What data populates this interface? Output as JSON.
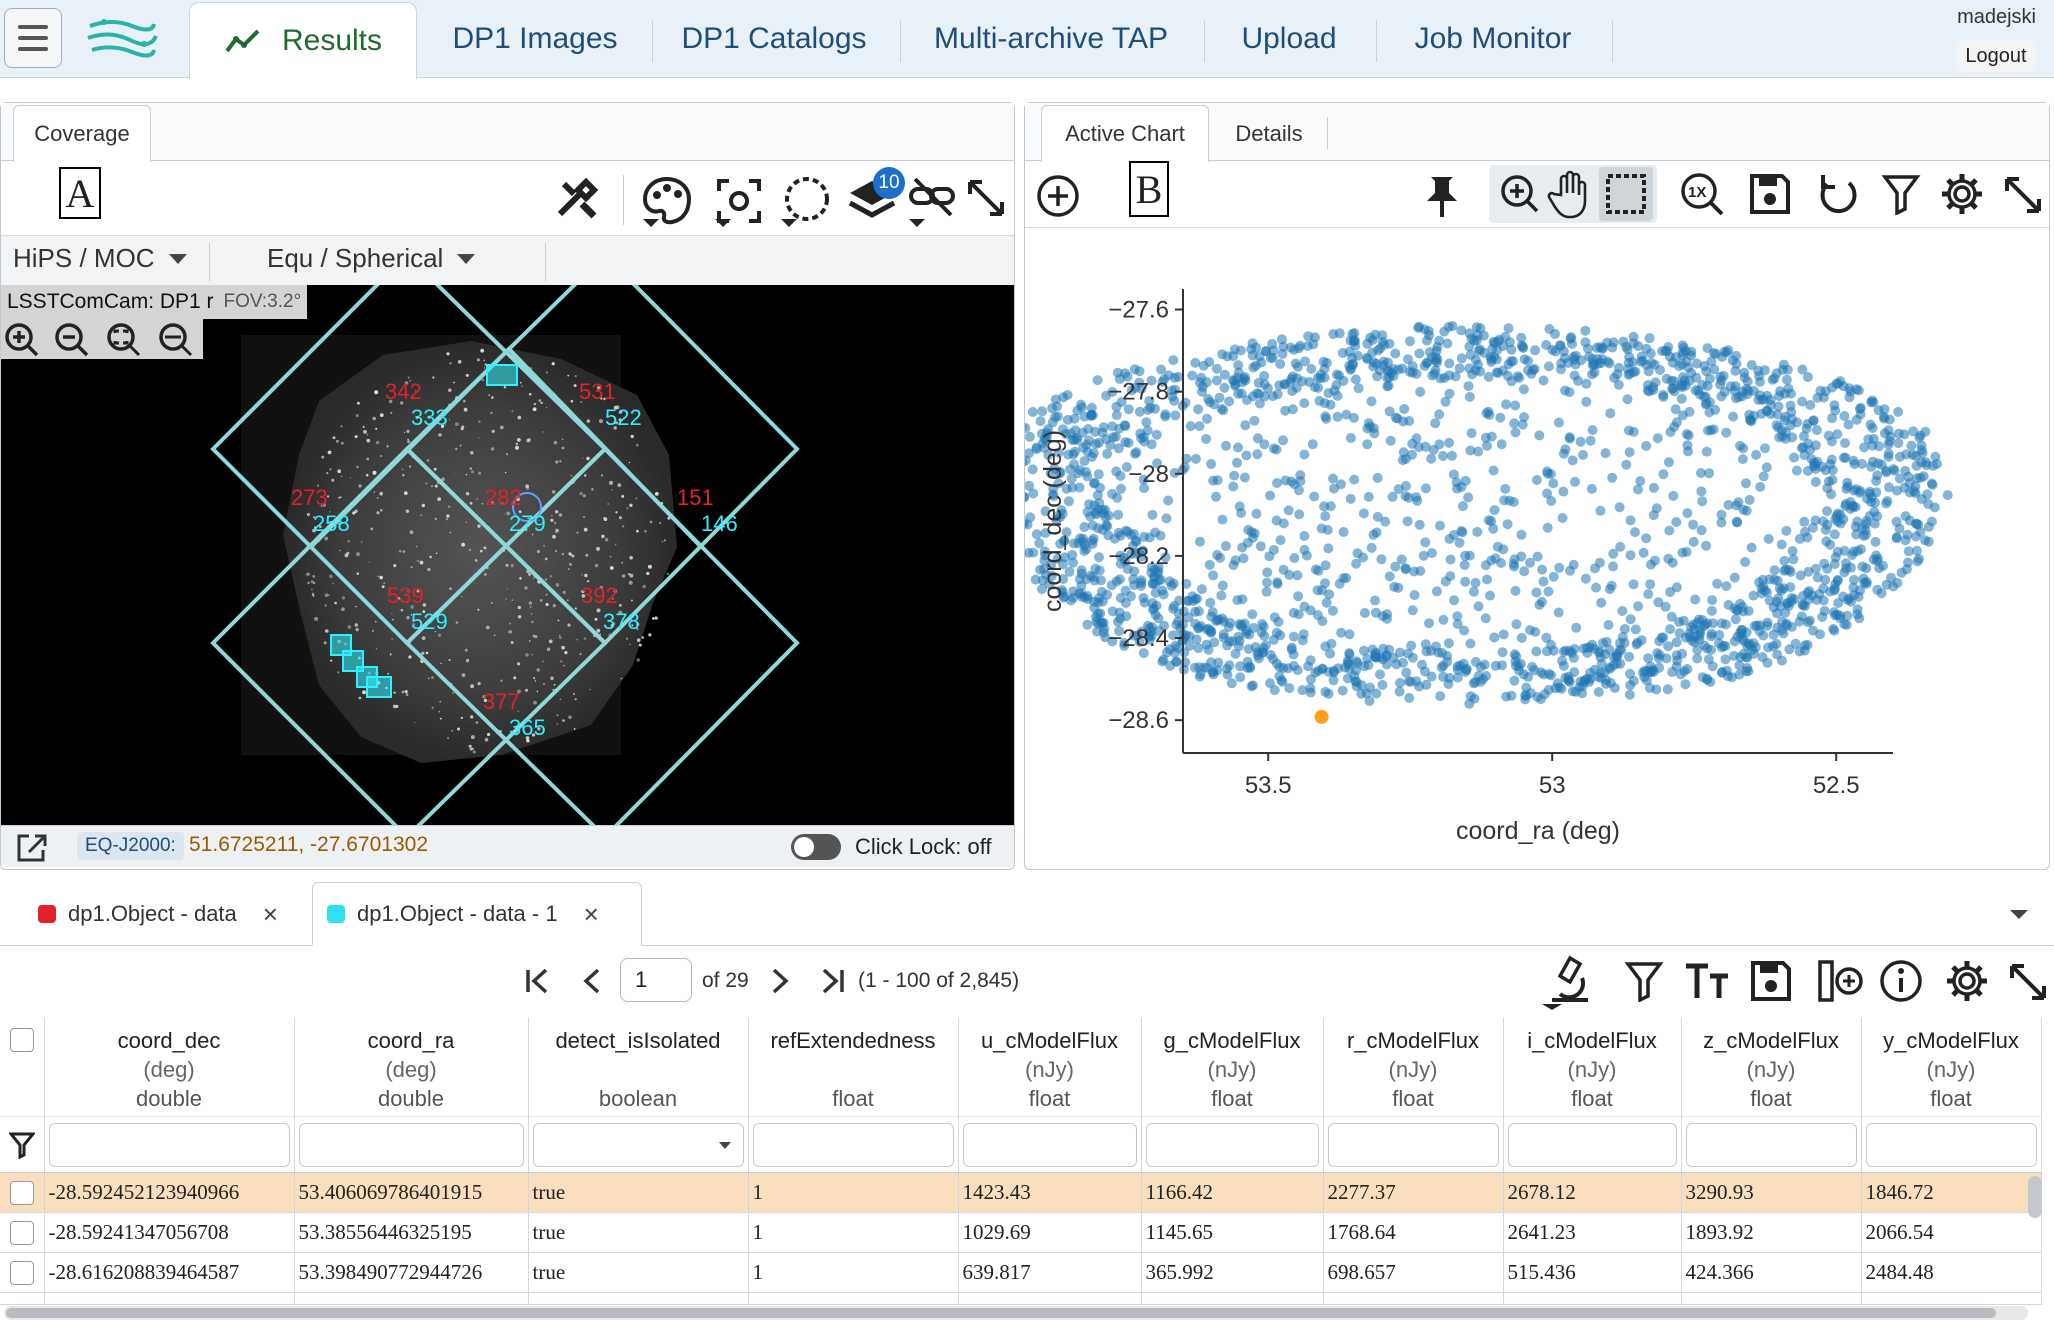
{
  "app": {
    "top_tabs": [
      "Results",
      "DP1 Images",
      "DP1 Catalogs",
      "Multi-archive TAP",
      "Upload",
      "Job Monitor"
    ],
    "user": "madejski",
    "logout_label": "Logout"
  },
  "coverage": {
    "tab_label": "Coverage",
    "marker": "A",
    "layers_badge": "10",
    "hips_moc_label": "HiPS / MOC",
    "projection_label": "Equ / Spherical",
    "image_title": "LSSTComCam: DP1 r",
    "fov": "FOV:3.2°",
    "tiles": [
      {
        "red": "342",
        "cyan": "333"
      },
      {
        "red": "531",
        "cyan": "522"
      },
      {
        "red": "273",
        "cyan": "258"
      },
      {
        "red": "282",
        "cyan": "279"
      },
      {
        "red": "151",
        "cyan": "146"
      },
      {
        "red": "539",
        "cyan": "529"
      },
      {
        "red": "392",
        "cyan": "378"
      },
      {
        "red": "377",
        "cyan": "365"
      }
    ],
    "coord_system": "EQ-J2000:",
    "coord_value": "51.6725211, -27.6701302",
    "click_lock": "Click Lock: off"
  },
  "chart_panel": {
    "tabs": [
      "Active Chart",
      "Details"
    ],
    "marker": "B"
  },
  "chart_data": {
    "type": "scatter",
    "title": "",
    "xlabel": "coord_ra (deg)",
    "ylabel": "coord_dec (deg)",
    "xlim": [
      53.65,
      52.4
    ],
    "ylim": [
      -28.68,
      -27.55
    ],
    "x_ticks": [
      53.5,
      53,
      52.5
    ],
    "x_tick_labels": [
      "53.5",
      "53",
      "52.5"
    ],
    "y_ticks": [
      -27.6,
      -27.8,
      -28,
      -28.2,
      -28.4,
      -28.6
    ],
    "y_tick_labels": [
      "−27.6",
      "−27.8",
      "−28",
      "−28.2",
      "−28.4",
      "−28.6"
    ],
    "series_color": "#1f77b4",
    "highlight_color": "#ff9f1c",
    "highlight_point": {
      "x": 53.406,
      "y": -28.592
    },
    "field": {
      "center_ra": 53.15,
      "center_dec": -28.1,
      "radius_ra": 0.84,
      "radius_dec": 0.49,
      "n_points": 2200
    }
  },
  "tables": {
    "tabs": [
      {
        "label": "dp1.Object - data",
        "color": "#e5202b"
      },
      {
        "label": "dp1.Object - data - 1",
        "color": "#30e0f0"
      }
    ],
    "pager": {
      "page": "1",
      "of": "of 29",
      "range": "(1 - 100 of 2,845)"
    },
    "columns": [
      {
        "name": "coord_dec",
        "unit": "(deg)",
        "type": "double"
      },
      {
        "name": "coord_ra",
        "unit": "(deg)",
        "type": "double"
      },
      {
        "name": "detect_isIsolated",
        "unit": "",
        "type": "boolean"
      },
      {
        "name": "refExtendedness",
        "unit": "",
        "type": "float"
      },
      {
        "name": "u_cModelFlux",
        "unit": "(nJy)",
        "type": "float"
      },
      {
        "name": "g_cModelFlux",
        "unit": "(nJy)",
        "type": "float"
      },
      {
        "name": "r_cModelFlux",
        "unit": "(nJy)",
        "type": "float"
      },
      {
        "name": "i_cModelFlux",
        "unit": "(nJy)",
        "type": "float"
      },
      {
        "name": "z_cModelFlux",
        "unit": "(nJy)",
        "type": "float"
      },
      {
        "name": "y_cModelFlux",
        "unit": "(nJy)",
        "type": "float"
      }
    ],
    "rows": [
      [
        "-28.592452123940966",
        "53.406069786401915",
        "true",
        "1",
        "1423.43",
        "1166.42",
        "2277.37",
        "2678.12",
        "3290.93",
        "1846.72"
      ],
      [
        "-28.59241347056708",
        "53.38556446325195",
        "true",
        "1",
        "1029.69",
        "1145.65",
        "1768.64",
        "2641.23",
        "1893.92",
        "2066.54"
      ],
      [
        "-28.616208839464587",
        "53.398490772944726",
        "true",
        "1",
        "639.817",
        "365.992",
        "698.657",
        "515.436",
        "424.366",
        "2484.48"
      ]
    ]
  }
}
